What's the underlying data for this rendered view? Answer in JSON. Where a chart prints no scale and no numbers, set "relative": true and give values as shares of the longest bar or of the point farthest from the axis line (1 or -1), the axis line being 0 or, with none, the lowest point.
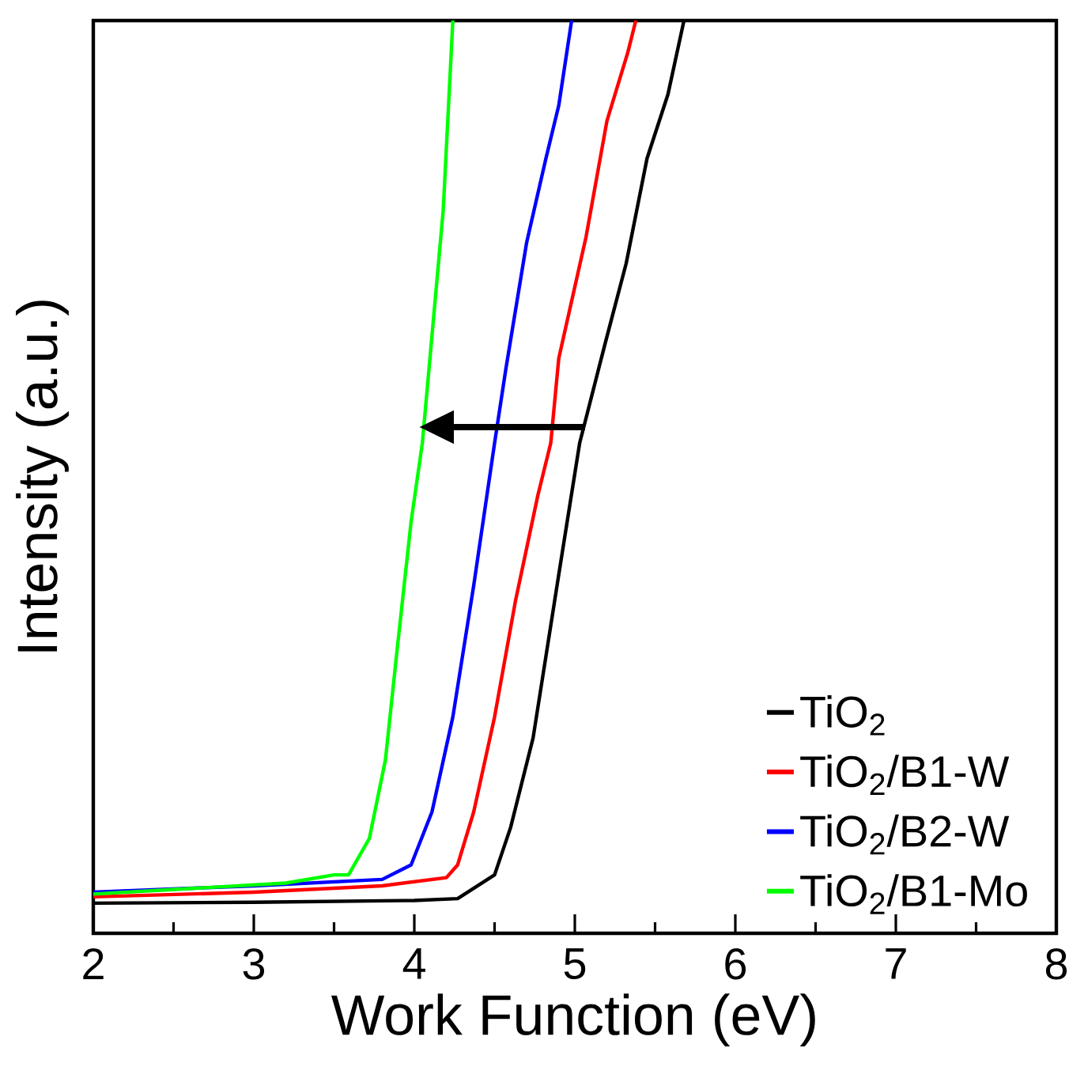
{
  "chart_data": {
    "type": "line",
    "relative": true,
    "xlabel": "Work Function (eV)",
    "ylabel": "Intensity (a.u.)",
    "xlim": [
      2,
      8
    ],
    "xticks": [
      2,
      3,
      4,
      5,
      6,
      7,
      8
    ],
    "legend": "bottom right",
    "grid": false,
    "marker": "none",
    "line_style": "solid",
    "series": [
      {
        "name": "TiO$_{2}$",
        "color": "#000000",
        "x": [
          2,
          3,
          4,
          4.27,
          4.5,
          4.6,
          4.74,
          4.9,
          5.03,
          5.19,
          5.32,
          5.45,
          5.58,
          5.68
        ],
        "values": [
          0.033,
          0.034,
          0.036,
          0.038,
          0.064,
          0.116,
          0.214,
          0.393,
          0.537,
          0.647,
          0.734,
          0.849,
          0.919,
          1.0
        ]
      },
      {
        "name": "TiO$_{2}$/B1-W",
        "color": "#ff0000",
        "x": [
          2,
          3,
          3.8,
          4.2,
          4.27,
          4.37,
          4.5,
          4.63,
          4.77,
          4.85,
          4.9,
          5.07,
          5.2,
          5.33,
          5.38
        ],
        "values": [
          0.04,
          0.045,
          0.052,
          0.061,
          0.075,
          0.133,
          0.237,
          0.364,
          0.48,
          0.537,
          0.63,
          0.763,
          0.89,
          0.965,
          1.0
        ]
      },
      {
        "name": "TiO$_{2}$/B2-W",
        "color": "#0000ff",
        "x": [
          2,
          3,
          3.8,
          3.98,
          4.11,
          4.24,
          4.37,
          4.5,
          4.57,
          4.7,
          4.82,
          4.9,
          4.98
        ],
        "values": [
          0.045,
          0.052,
          0.059,
          0.075,
          0.133,
          0.237,
          0.381,
          0.537,
          0.618,
          0.757,
          0.849,
          0.907,
          1.0
        ]
      },
      {
        "name": "TiO$_{2}$/B1-Mo",
        "color": "#00ff00",
        "x": [
          2,
          3.2,
          3.5,
          3.59,
          3.72,
          3.82,
          3.89,
          3.98,
          4.05,
          4.18,
          4.24
        ],
        "values": [
          0.043,
          0.055,
          0.064,
          0.064,
          0.104,
          0.19,
          0.306,
          0.451,
          0.537,
          0.792,
          1.0
        ]
      }
    ]
  }
}
